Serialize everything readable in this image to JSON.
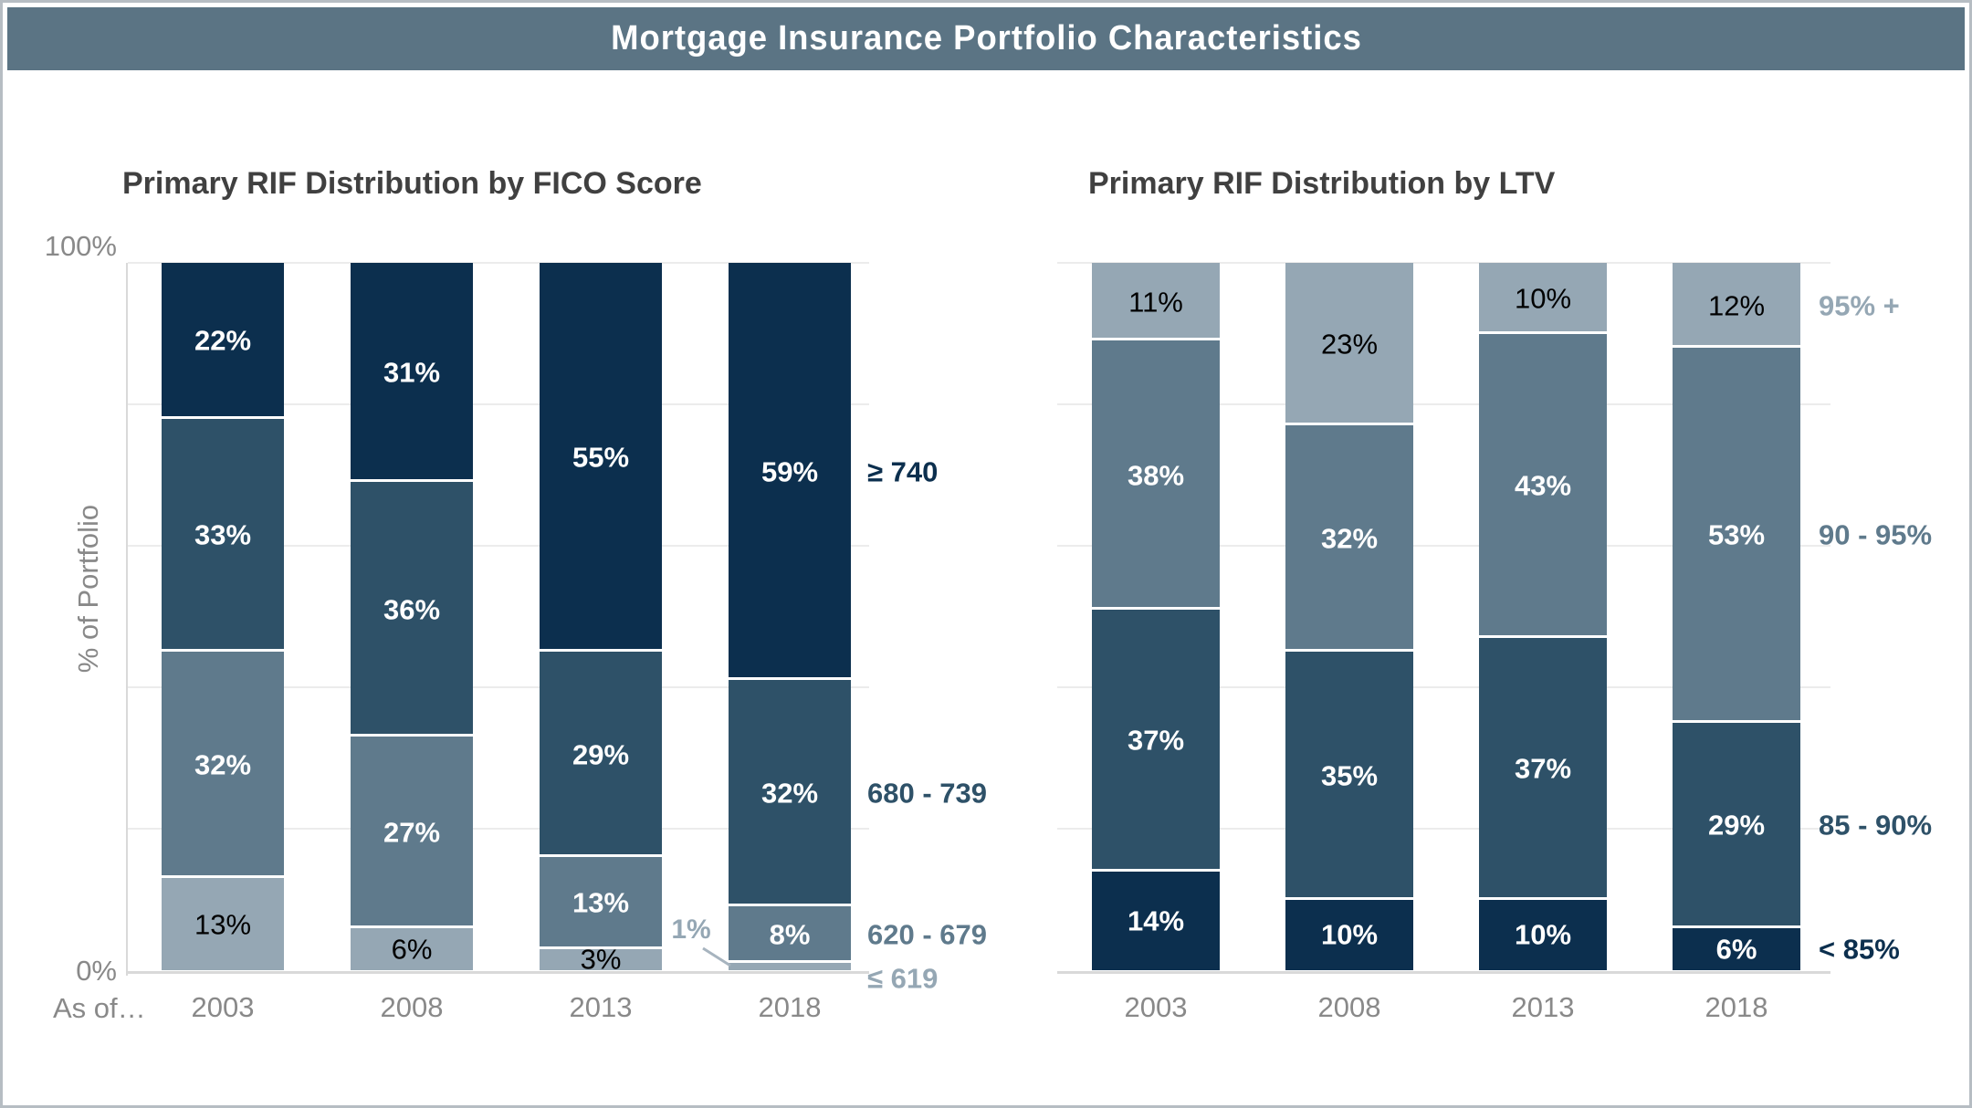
{
  "header": {
    "title": "Mortgage Insurance Portfolio Characteristics"
  },
  "axes": {
    "y_max_label": "100%",
    "y_min_label": "0%",
    "y_title": "% of Portfolio",
    "x_prefix": "As of…"
  },
  "colors": {
    "navy": "#0c2f4e",
    "slate": "#2e5168",
    "medium": "#5f7a8c",
    "light": "#95a7b4",
    "header_bg": "#5b7484",
    "chart_title_text": "#404040",
    "axis_text": "#898989",
    "gridline": "#ececec",
    "axis_line": "#d9d9d9",
    "page_border": "#b6bdc3",
    "label_on_dark": "#ffffff",
    "label_on_light": "#000000",
    "callout_line": "#a7b4bf"
  },
  "chart_data": [
    {
      "type": "bar",
      "stacked": true,
      "title": "Primary RIF Distribution by FICO Score",
      "ylabel": "% of Portfolio",
      "ylim": [
        0,
        100
      ],
      "grid": "horizontal every 20%",
      "legend_position": "right of last bar, aligned to segment centers",
      "categories": [
        "2003",
        "2008",
        "2013",
        "2018"
      ],
      "series": [
        {
          "name": "≤ 619",
          "color_key": "light",
          "values": [
            13,
            6,
            3,
            1
          ]
        },
        {
          "name": "620 - 679",
          "color_key": "medium",
          "values": [
            32,
            27,
            13,
            8
          ]
        },
        {
          "name": "680 - 739",
          "color_key": "slate",
          "values": [
            33,
            36,
            29,
            32
          ]
        },
        {
          "name": "≥ 740",
          "color_key": "navy",
          "values": [
            22,
            31,
            55,
            59
          ]
        }
      ],
      "annotations": [
        {
          "series_index": 0,
          "category_index": 3,
          "label": "1%"
        }
      ]
    },
    {
      "type": "bar",
      "stacked": true,
      "title": "Primary RIF Distribution by LTV",
      "ylim": [
        0,
        100
      ],
      "grid": "horizontal every 20%",
      "legend_position": "right of last bar, aligned to segment centers",
      "categories": [
        "2003",
        "2008",
        "2013",
        "2018"
      ],
      "series": [
        {
          "name": "< 85%",
          "color_key": "navy",
          "values": [
            14,
            10,
            10,
            6
          ]
        },
        {
          "name": "85 - 90%",
          "color_key": "slate",
          "values": [
            37,
            35,
            37,
            29
          ]
        },
        {
          "name": "90 - 95%",
          "color_key": "medium",
          "values": [
            38,
            32,
            43,
            53
          ]
        },
        {
          "name": "95% +",
          "color_key": "light",
          "values": [
            11,
            23,
            10,
            12
          ]
        }
      ],
      "annotations": []
    }
  ]
}
